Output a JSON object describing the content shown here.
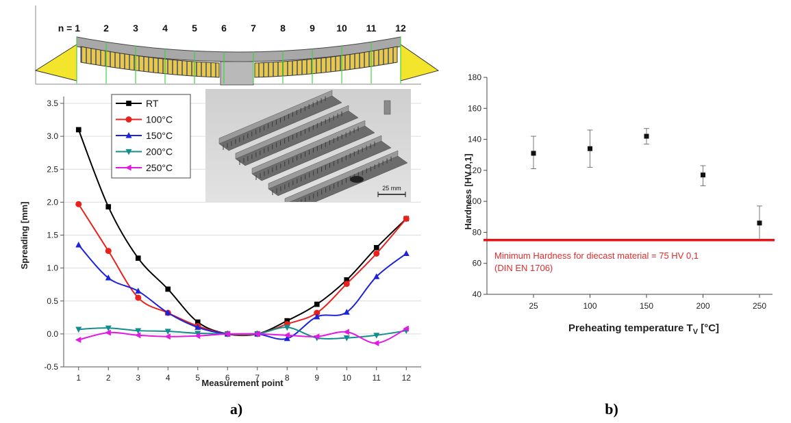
{
  "schematic": {
    "n_prefix": "n = ",
    "points": [
      "1",
      "2",
      "3",
      "4",
      "5",
      "6",
      "7",
      "8",
      "9",
      "10",
      "11",
      "12"
    ]
  },
  "photo": {
    "scale_label": "25 mm"
  },
  "panel_labels": {
    "a": "a)",
    "b": "b)"
  },
  "chart_data": [
    {
      "type": "line",
      "title": "",
      "xlabel": "Measurement point",
      "ylabel": "Spreading [mm]",
      "x": [
        1,
        2,
        3,
        4,
        5,
        6,
        7,
        8,
        9,
        10,
        11,
        12
      ],
      "xlim": [
        0.5,
        12.5
      ],
      "ylim": [
        -0.5,
        3.5
      ],
      "yticks": [
        "-0.5",
        "0.0",
        "0.5",
        "1.0",
        "1.5",
        "2.0",
        "2.5",
        "3.0",
        "3.5"
      ],
      "grid": "horizontal",
      "legend_position": "top-center",
      "series": [
        {
          "name": "RT",
          "color": "#000000",
          "marker": "square",
          "values": [
            3.1,
            1.93,
            1.15,
            0.68,
            0.18,
            0.0,
            0.0,
            0.2,
            0.45,
            0.82,
            1.31,
            1.75
          ]
        },
        {
          "name": "100°C",
          "color": "#e8211d",
          "marker": "circle",
          "values": [
            1.97,
            1.26,
            0.55,
            0.32,
            0.12,
            0.0,
            0.0,
            0.15,
            0.32,
            0.76,
            1.22,
            1.75
          ]
        },
        {
          "name": "150°C",
          "color": "#1c23d9",
          "marker": "triangle-up",
          "values": [
            1.35,
            0.85,
            0.65,
            0.32,
            0.1,
            0.0,
            0.0,
            -0.07,
            0.26,
            0.33,
            0.87,
            1.22
          ]
        },
        {
          "name": "200°C",
          "color": "#138c8c",
          "marker": "triangle-down",
          "values": [
            0.07,
            0.09,
            0.05,
            0.04,
            0.01,
            0.0,
            0.0,
            0.1,
            -0.06,
            -0.06,
            -0.02,
            0.05
          ]
        },
        {
          "name": "250°C",
          "color": "#e219e2",
          "marker": "triangle-left",
          "values": [
            -0.09,
            0.02,
            -0.02,
            -0.04,
            -0.03,
            0.0,
            0.0,
            -0.02,
            -0.04,
            0.03,
            -0.14,
            0.08
          ]
        }
      ]
    },
    {
      "type": "scatter",
      "title": "",
      "xlabel_prefix": "Preheating temperature T",
      "xlabel_sub": "V",
      "xlabel_suffix": " [°C]",
      "ylabel": "Hardness [HV 0,1]",
      "categories": [
        "25",
        "100",
        "150",
        "200",
        "250"
      ],
      "values": [
        131,
        134,
        142,
        117,
        86
      ],
      "error_low": [
        121,
        122,
        137,
        110,
        75
      ],
      "error_high": [
        142,
        146,
        147,
        123,
        97
      ],
      "ylim": [
        40,
        180
      ],
      "yticks": [
        "40",
        "60",
        "80",
        "100",
        "120",
        "140",
        "160",
        "180"
      ],
      "threshold": {
        "value": 75,
        "color": "#ee1111",
        "label_line1": "Minimum Hardness for diecast material = 75 HV 0,1",
        "label_line2": "(DIN EN 1706)"
      }
    }
  ]
}
